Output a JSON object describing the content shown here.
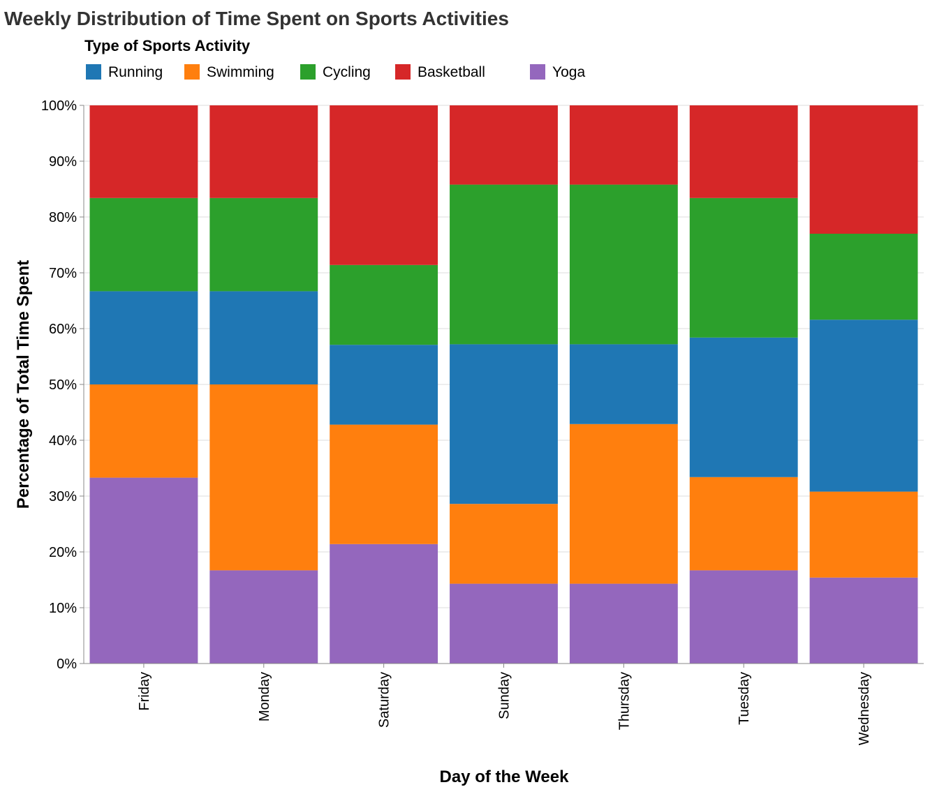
{
  "chart_data": {
    "type": "bar",
    "stacked": "normalized",
    "title": "Weekly Distribution of Time Spent on Sports Activities",
    "xlabel": "Day of the Week",
    "ylabel": "Percentage of Total Time Spent",
    "legend_title": "Type of Sports Activity",
    "legend_position": "top-left",
    "ylim": [
      0,
      100
    ],
    "y_ticks": [
      "0%",
      "10%",
      "20%",
      "30%",
      "40%",
      "50%",
      "60%",
      "70%",
      "80%",
      "90%",
      "100%"
    ],
    "grid": true,
    "categories": [
      "Friday",
      "Monday",
      "Saturday",
      "Sunday",
      "Thursday",
      "Tuesday",
      "Wednesday"
    ],
    "legend_order": [
      "Running",
      "Swimming",
      "Cycling",
      "Basketball",
      "Yoga"
    ],
    "stack_order": [
      "Yoga",
      "Swimming",
      "Running",
      "Cycling",
      "Basketball"
    ],
    "series": [
      {
        "name": "Running",
        "color": "#1f77b4",
        "values": [
          16.7,
          16.7,
          14.3,
          28.6,
          14.3,
          25.0,
          30.8
        ]
      },
      {
        "name": "Swimming",
        "color": "#ff7f0e",
        "values": [
          16.7,
          33.3,
          21.4,
          14.3,
          28.6,
          16.7,
          15.4
        ]
      },
      {
        "name": "Cycling",
        "color": "#2ca02c",
        "values": [
          16.7,
          16.7,
          14.3,
          28.6,
          28.6,
          25.0,
          15.4
        ]
      },
      {
        "name": "Basketball",
        "color": "#d62728",
        "values": [
          16.6,
          16.6,
          28.6,
          14.2,
          14.2,
          16.6,
          23.0
        ]
      },
      {
        "name": "Yoga",
        "color": "#9467bd",
        "values": [
          33.3,
          16.7,
          21.4,
          14.3,
          14.3,
          16.7,
          15.4
        ]
      }
    ]
  }
}
